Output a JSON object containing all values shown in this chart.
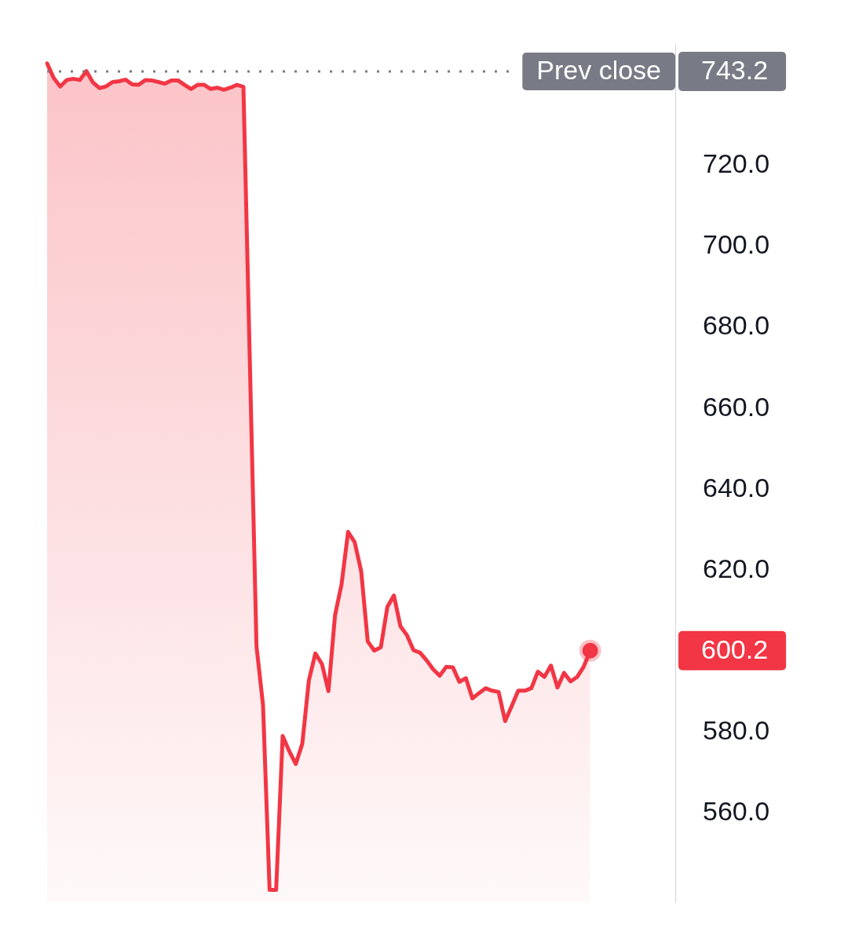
{
  "chart_data": {
    "type": "area",
    "categories": [
      null,
      null,
      null,
      null,
      null,
      null,
      null,
      null,
      null,
      null,
      null,
      null,
      null,
      null,
      null,
      null,
      null,
      null,
      null,
      null,
      null,
      null,
      null,
      null,
      null,
      null,
      null,
      null,
      null,
      null,
      null,
      null,
      null,
      null,
      null,
      null,
      null,
      null,
      null,
      null,
      null,
      null,
      null,
      null,
      null,
      null,
      null,
      null,
      null,
      null,
      null,
      null,
      null,
      null,
      null,
      null,
      null,
      null,
      null,
      null,
      null,
      null,
      null,
      null,
      null,
      null,
      null,
      null,
      null,
      null,
      null,
      null,
      null,
      null,
      null,
      null,
      null,
      null,
      null,
      null,
      null,
      null,
      null,
      null,
      null,
      null,
      null,
      null,
      null,
      null,
      null,
      null,
      null,
      null,
      null,
      null,
      null
    ],
    "series": [
      {
        "color": "#f23645",
        "values": [
          745.2,
          741.6,
          739.5,
          741.1,
          741.4,
          741.1,
          743.3,
          740.5,
          739.1,
          739.5,
          740.6,
          740.8,
          741.2,
          740.0,
          739.9,
          741.1,
          741.0,
          740.6,
          740.2,
          741.0,
          741.0,
          739.9,
          738.9,
          739.9,
          739.9,
          738.9,
          739.2,
          738.7,
          739.2,
          739.9,
          739.4,
          670.4,
          601.3,
          586.7,
          541.1,
          541.1,
          579.1,
          575.4,
          572.2,
          577.2,
          592.8,
          599.5,
          596.9,
          590.2,
          608.9,
          616.6,
          629.5,
          627.0,
          619.8,
          602.5,
          600.2,
          601.0,
          611.0,
          613.8,
          606.2,
          604.0,
          600.3,
          599.7,
          597.8,
          595.6,
          594.0,
          596.2,
          596.1,
          592.5,
          593.4,
          588.4,
          589.7,
          590.9,
          590.3,
          590.0,
          582.8,
          586.5,
          590.3,
          590.3,
          590.9,
          595.0,
          593.7,
          596.5,
          591.1,
          594.7,
          592.6,
          593.7,
          596.2,
          600.2,
          null,
          null,
          null,
          null,
          null,
          null,
          null,
          null,
          null,
          null,
          null,
          null,
          null
        ]
      },
      {
        "type": "scatter",
        "color": "#f23645",
        "marker": "circle",
        "values": [
          null,
          null,
          null,
          null,
          null,
          null,
          null,
          null,
          null,
          null,
          null,
          null,
          null,
          null,
          null,
          null,
          null,
          null,
          null,
          null,
          null,
          null,
          null,
          null,
          null,
          null,
          null,
          null,
          null,
          null,
          null,
          null,
          null,
          null,
          null,
          null,
          null,
          null,
          null,
          null,
          null,
          null,
          null,
          null,
          null,
          null,
          null,
          null,
          null,
          null,
          null,
          null,
          null,
          null,
          null,
          null,
          null,
          null,
          null,
          null,
          null,
          null,
          null,
          null,
          null,
          null,
          null,
          null,
          null,
          null,
          null,
          null,
          null,
          null,
          null,
          null,
          null,
          null,
          null,
          null,
          null,
          null,
          null,
          600.2,
          null,
          null,
          null,
          null,
          null,
          null,
          null,
          null,
          null,
          null,
          null,
          null,
          null
        ]
      }
    ],
    "ylim": [
      538,
      750
    ],
    "yticks": [
      {
        "value": 560,
        "label": "560.0"
      },
      {
        "value": 580,
        "label": "580.0"
      },
      {
        "value": 620,
        "label": "620.0"
      },
      {
        "value": 640,
        "label": "640.0"
      },
      {
        "value": 660,
        "label": "660.0"
      },
      {
        "value": 680,
        "label": "680.0"
      },
      {
        "value": 700,
        "label": "700.0"
      },
      {
        "value": 720,
        "label": "720.0"
      }
    ],
    "ref_lines": [
      {
        "axis": "y",
        "value": 743.2,
        "label": "Prev close",
        "color": "#787b86",
        "line_style": "dotted"
      }
    ],
    "annotations": [
      "743.2",
      "600.2"
    ],
    "grid": false,
    "legend": false,
    "tick_labels": "y"
  }
}
